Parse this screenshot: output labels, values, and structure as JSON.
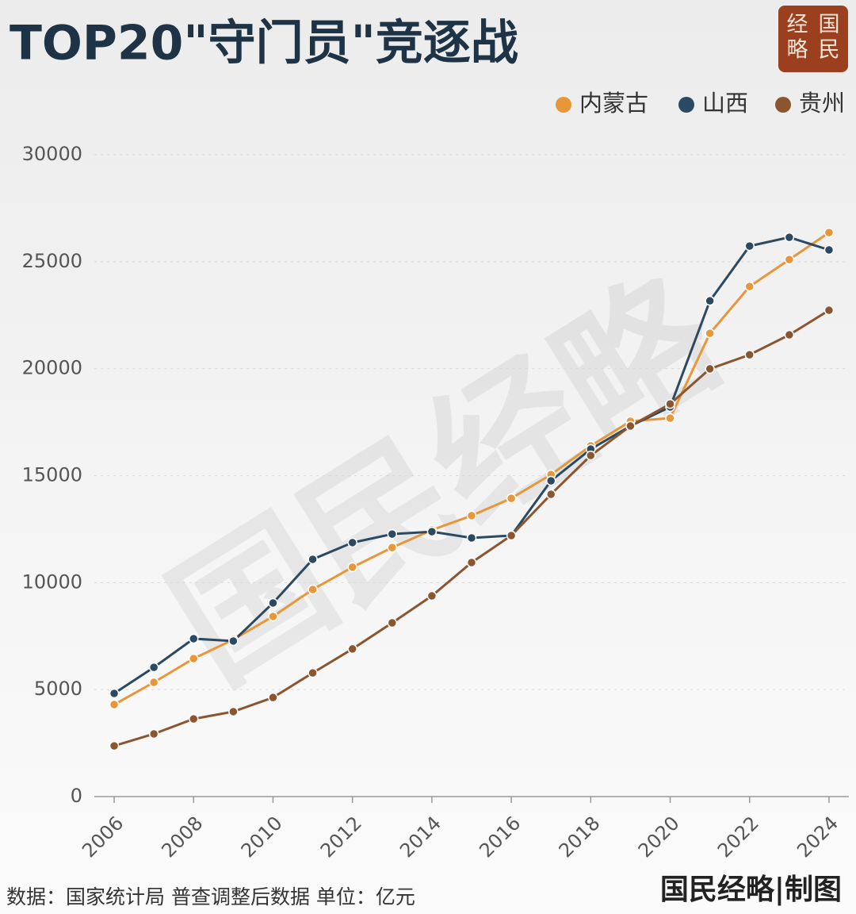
{
  "chart_data": {
    "type": "line",
    "title": "TOP20\"守门员\"竞逐战",
    "logo": [
      "经",
      "国",
      "略",
      "民"
    ],
    "watermark": "国民经略",
    "source": "数据：国家统计局 普查调整后数据  单位：亿元",
    "credit": "国民经略|制图",
    "x": [
      2006,
      2007,
      2008,
      2009,
      2010,
      2011,
      2012,
      2013,
      2014,
      2015,
      2016,
      2017,
      2018,
      2019,
      2020,
      2021,
      2022,
      2023,
      2024
    ],
    "xlim": [
      2005.5,
      2024.5
    ],
    "xticks": [
      2006,
      2008,
      2010,
      2012,
      2014,
      2016,
      2018,
      2020,
      2022,
      2024
    ],
    "ylim": [
      0,
      30000
    ],
    "yticks": [
      0,
      5000,
      10000,
      15000,
      20000,
      25000,
      30000
    ],
    "grid": true,
    "legend": "top-right",
    "series": [
      {
        "name": "内蒙古",
        "color": "#e8963a",
        "values": [
          4300,
          5340,
          6450,
          7340,
          8420,
          9680,
          10720,
          11640,
          12460,
          13130,
          13940,
          15050,
          16390,
          17540,
          17690,
          21650,
          23840,
          25100,
          26360
        ]
      },
      {
        "name": "山西",
        "color": "#2b4a62",
        "values": [
          4820,
          6040,
          7380,
          7270,
          9050,
          11090,
          11870,
          12270,
          12380,
          12090,
          12200,
          14760,
          16240,
          17320,
          18210,
          23170,
          25730,
          26140,
          25550
        ]
      },
      {
        "name": "贵州",
        "color": "#8b5530",
        "values": [
          2370,
          2930,
          3630,
          3970,
          4630,
          5780,
          6900,
          8120,
          9380,
          10940,
          12200,
          14130,
          15940,
          17320,
          18350,
          19990,
          20650,
          21580,
          22730
        ]
      }
    ]
  }
}
